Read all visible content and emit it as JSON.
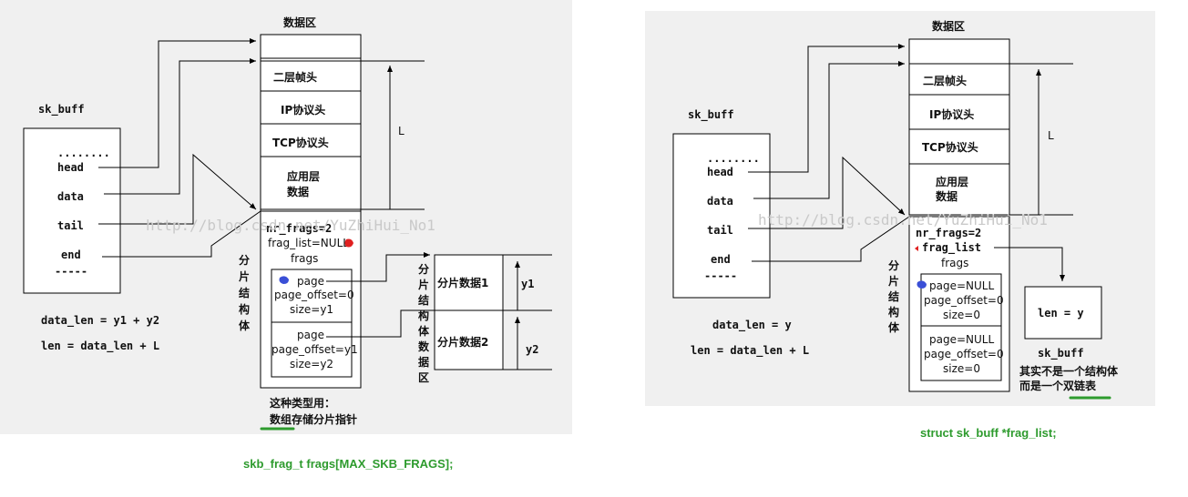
{
  "left": {
    "data_area_title": "数据区",
    "rows": [
      "二层帧头",
      "IP协议头",
      "TCP协议头",
      "应用层",
      "数据"
    ],
    "sk_buff_label": "sk_buff",
    "fields": [
      "........",
      "head",
      "data",
      "tail",
      "end",
      "-----"
    ],
    "L_label": "L",
    "shared_info": {
      "nr_frags": "nr_frags=2",
      "frag_list": "frag_list=NULL",
      "frags": "frags",
      "frag1": [
        "page",
        "page_offset=0",
        "size=y1"
      ],
      "frag2": [
        "page",
        "page_offset=y1",
        "size=y2"
      ]
    },
    "vertical_label": "分片结构体",
    "frag_data_label": "分片结构体数据区",
    "frag_data": [
      "分片数据1",
      "分片数据2"
    ],
    "y1": "y1",
    "y2": "y2",
    "formula1": "data_len = y1 + y2",
    "formula2": "len = data_len + L",
    "note1": "这种类型用：",
    "note2": "数组存储分片指针",
    "caption": "skb_frag_t frags[MAX_SKB_FRAGS];"
  },
  "right": {
    "data_area_title": "数据区",
    "rows": [
      "二层帧头",
      "IP协议头",
      "TCP协议头",
      "应用层",
      "数据"
    ],
    "sk_buff_label": "sk_buff",
    "fields": [
      "........",
      "head",
      "data",
      "tail",
      "end",
      "-----"
    ],
    "L_label": "L",
    "shared_info": {
      "nr_frags": "nr_frags=2",
      "frag_list": "frag_list",
      "frags": "frags",
      "frag1": [
        "page=NULL",
        "page_offset=0",
        "size=0"
      ],
      "frag2": [
        "page=NULL",
        "page_offset=0",
        "size=0"
      ]
    },
    "vertical_label": "分片结构体",
    "len_box": "len = y",
    "sk_buff2": "sk_buff",
    "note1": "其实不是一个结构体",
    "note2": "而是一个双链表",
    "formula1": "data_len = y",
    "formula2": "len = data_len + L",
    "caption": "struct sk_buff  *frag_list;"
  },
  "watermark": "http://blog.csdn.net/YuZhiHui_No1",
  "colors": {
    "panel": "#f0f0f0",
    "caption": "#2e9b2e",
    "marker_red": "#e02020",
    "marker_blue": "#3a4fd6"
  }
}
